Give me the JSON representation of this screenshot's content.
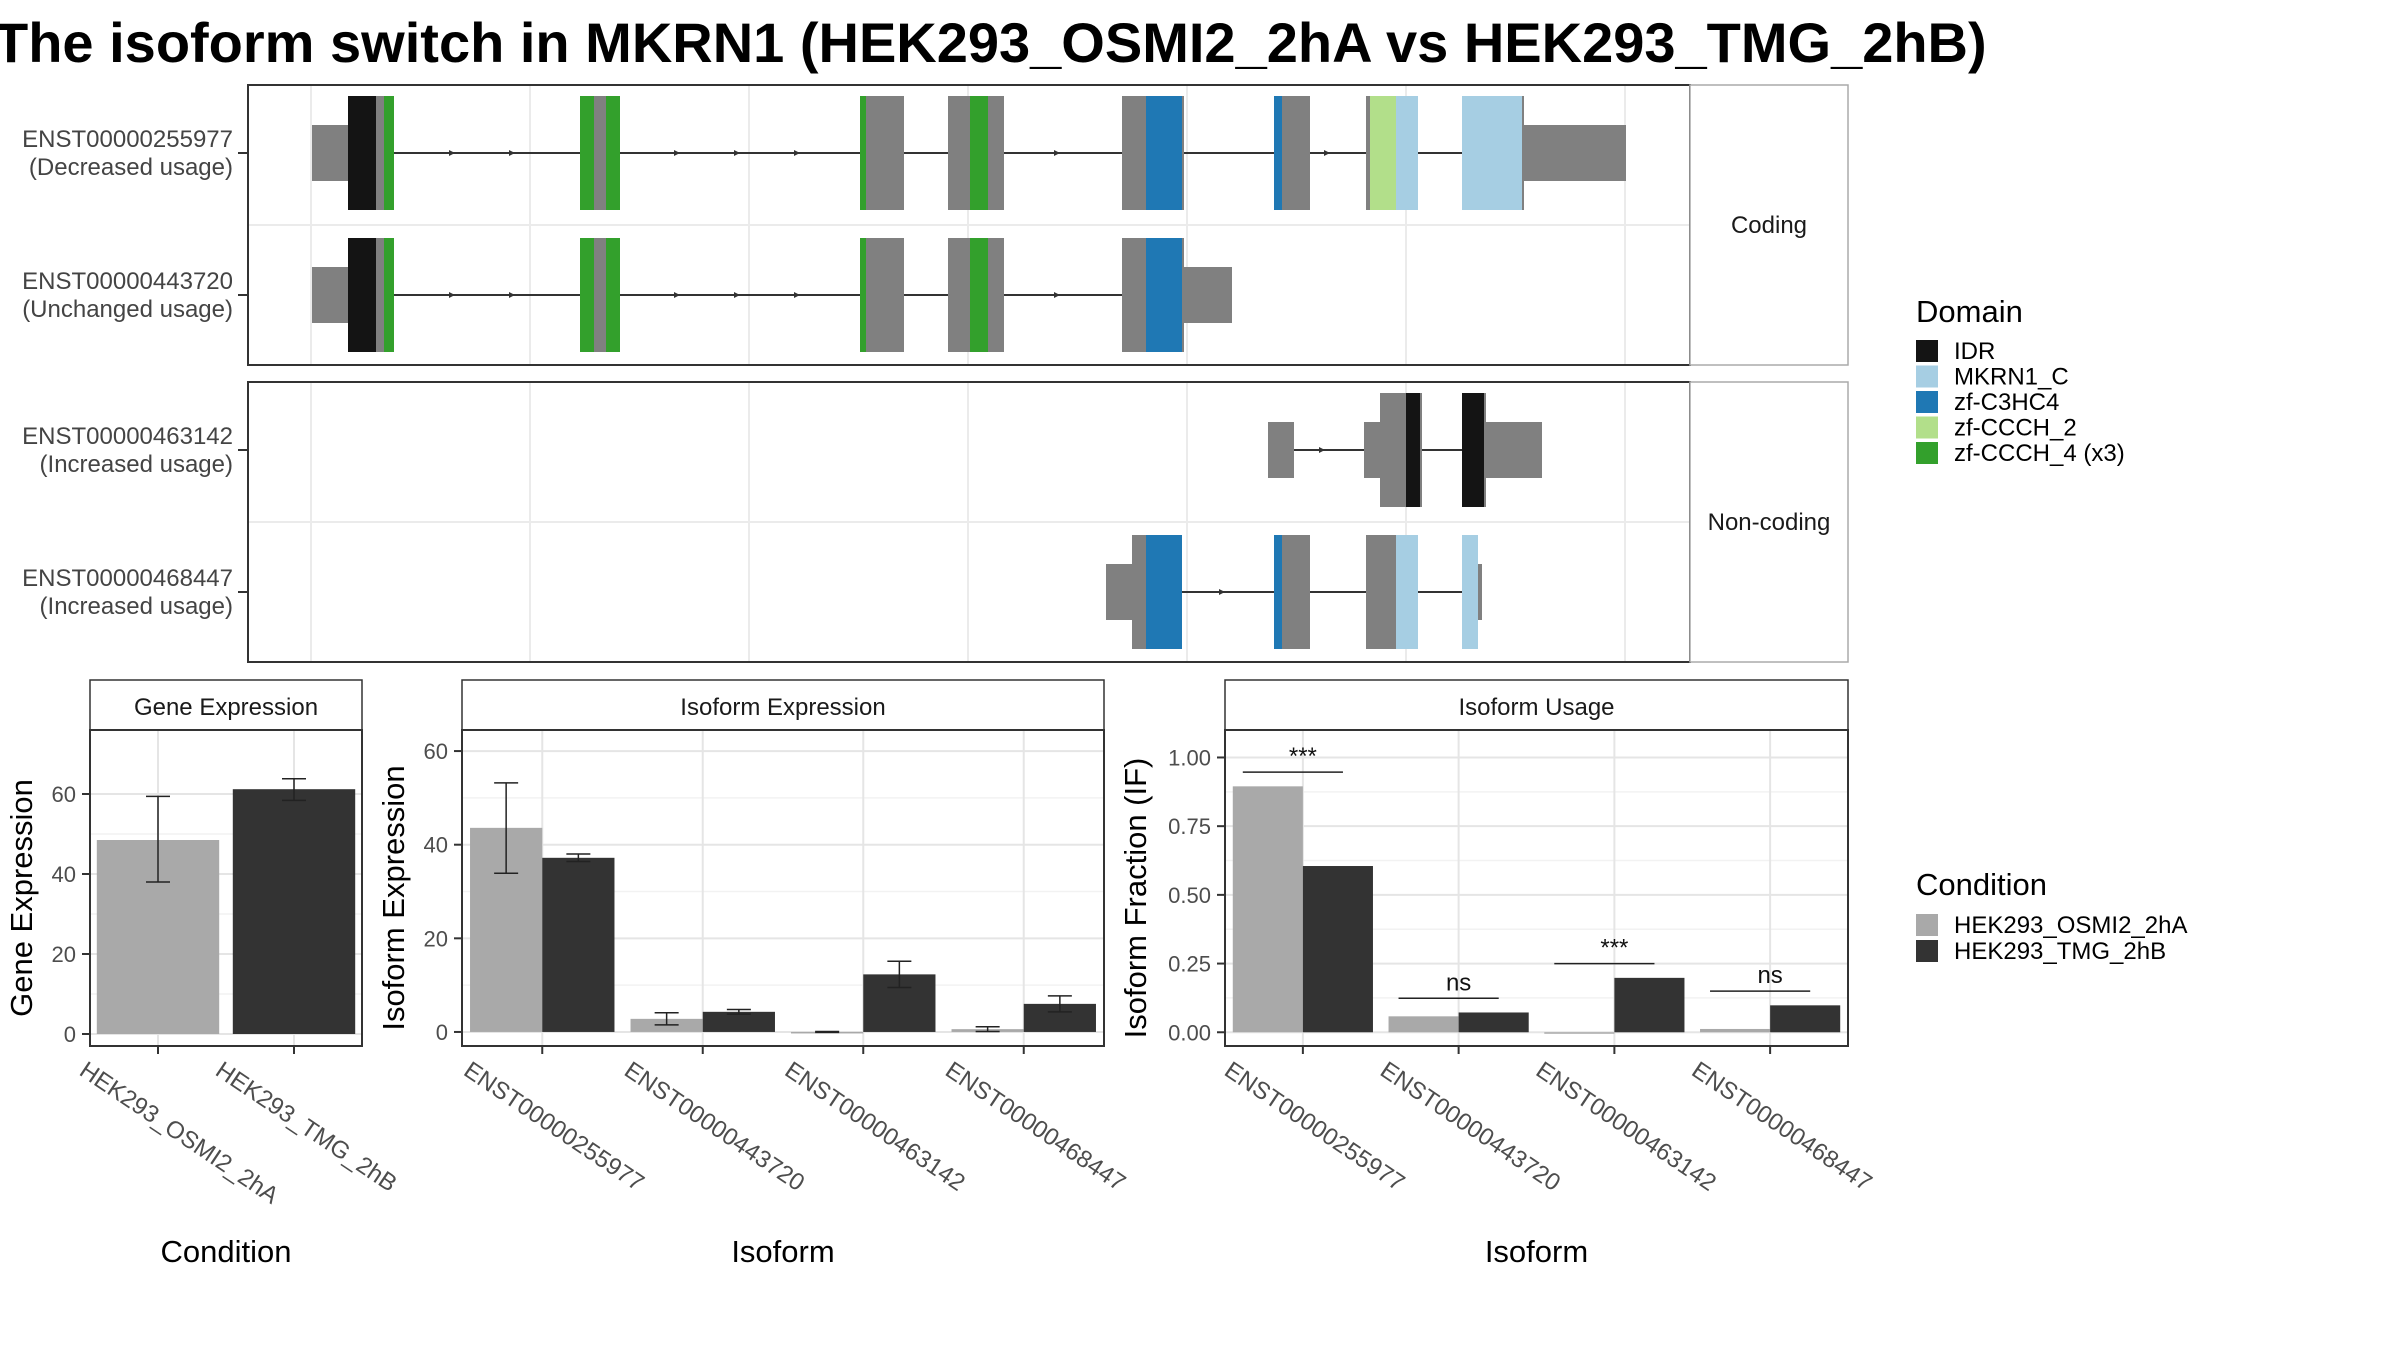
{
  "title": "The isoform switch in MKRN1 (HEK293_OSMI2_2hA vs HEK293_TMG_2hB)",
  "structure": {
    "facets": [
      {
        "label": "Coding",
        "transcripts": [
          {
            "id": "ENST00000255977",
            "usage": "(Decreased usage)"
          },
          {
            "id": "ENST00000443720",
            "usage": "(Unchanged usage)"
          }
        ]
      },
      {
        "label": "Non-coding",
        "transcripts": [
          {
            "id": "ENST00000463142",
            "usage": "(Increased usage)"
          },
          {
            "id": "ENST00000468447",
            "usage": "(Increased usage)"
          }
        ]
      }
    ],
    "domain_legend": {
      "title": "Domain",
      "items": [
        {
          "label": "IDR",
          "color": "#141414"
        },
        {
          "label": "MKRN1_C",
          "color": "#a6cee3"
        },
        {
          "label": "zf-C3HC4",
          "color": "#1f78b4"
        },
        {
          "label": "zf-CCCH_2",
          "color": "#b2df8a"
        },
        {
          "label": "zf-CCCH_4 (x3)",
          "color": "#33a02c"
        }
      ]
    },
    "exon_color": "#808080"
  },
  "chart_data": [
    {
      "type": "bar",
      "title": "Gene Expression",
      "xlabel": "Condition",
      "ylabel": "Gene Expression",
      "categories": [
        "HEK293_OSMI2_2hA",
        "HEK293_TMG_2hB"
      ],
      "values": [
        48.5,
        61.2
      ],
      "error": [
        [
          38.0,
          59.4
        ],
        [
          58.4,
          63.8
        ]
      ],
      "colors": [
        "#a9a9a9",
        "#333333"
      ],
      "ylim": [
        -3,
        76
      ],
      "yticks": [
        0,
        20,
        40,
        60
      ],
      "ytick_labels": [
        "0",
        "20",
        "40",
        "60"
      ]
    },
    {
      "type": "bar",
      "title": "Isoform Expression",
      "xlabel": "Isoform",
      "ylabel": "Isoform Expression",
      "categories": [
        "ENST00000255977",
        "ENST00000443720",
        "ENST00000463142",
        "ENST00000468447"
      ],
      "series": [
        {
          "name": "HEK293_OSMI2_2hA",
          "color": "#a9a9a9",
          "values": [
            43.6,
            2.8,
            0.0,
            0.6
          ],
          "error": [
            [
              33.9,
              53.2
            ],
            [
              1.5,
              4.1
            ],
            [
              -0.1,
              0.1
            ],
            [
              0.1,
              1.1
            ]
          ]
        },
        {
          "name": "HEK293_TMG_2hB",
          "color": "#333333",
          "values": [
            37.2,
            4.3,
            12.3,
            6.0
          ],
          "error": [
            [
              36.4,
              38.0
            ],
            [
              3.8,
              4.8
            ],
            [
              9.5,
              15.1
            ],
            [
              4.3,
              7.7
            ]
          ]
        }
      ],
      "ylim": [
        -3,
        64.5
      ],
      "yticks": [
        0,
        20,
        40,
        60
      ],
      "ytick_labels": [
        "0",
        "20",
        "40",
        "60"
      ]
    },
    {
      "type": "bar",
      "title": "Isoform Usage",
      "xlabel": "Isoform",
      "ylabel": "Isoform Fraction (IF)",
      "categories": [
        "ENST00000255977",
        "ENST00000443720",
        "ENST00000463142",
        "ENST00000468447"
      ],
      "series": [
        {
          "name": "HEK293_OSMI2_2hA",
          "color": "#a9a9a9",
          "values": [
            0.895,
            0.058,
            0.0,
            0.012
          ]
        },
        {
          "name": "HEK293_TMG_2hB",
          "color": "#333333",
          "values": [
            0.605,
            0.072,
            0.198,
            0.098
          ]
        }
      ],
      "significance": [
        "***",
        "ns",
        "***",
        "ns"
      ],
      "ylim": [
        -0.05,
        1.1
      ],
      "yticks": [
        0,
        0.25,
        0.5,
        0.75,
        1.0
      ],
      "ytick_labels": [
        "0.00",
        "0.25",
        "0.50",
        "0.75",
        "1.00"
      ]
    }
  ],
  "condition_legend": {
    "title": "Condition",
    "items": [
      {
        "label": "HEK293_OSMI2_2hA",
        "color": "#a9a9a9"
      },
      {
        "label": "HEK293_TMG_2hB",
        "color": "#333333"
      }
    ]
  }
}
